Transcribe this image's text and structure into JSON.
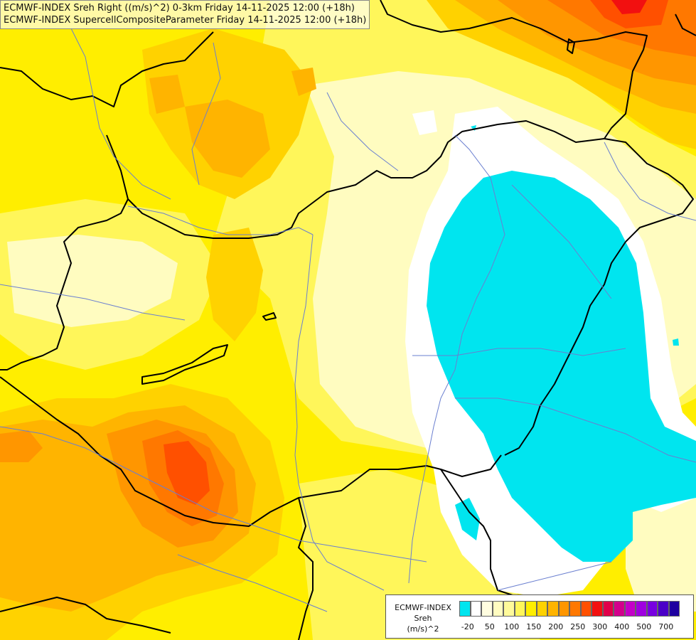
{
  "title": {
    "line1": "ECMWF-INDEX Sreh Right ((m/s)^2) 0-3km Friday 14-11-2025 12:00 (+18h)",
    "line2": "ECMWF-INDEX SupercellCompositeParameter Friday 14-11-2025 12:00 (+18h)"
  },
  "legend": {
    "line1": "ECMWF-INDEX",
    "line2": "Sreh",
    "line3": "(m/s)^2",
    "colors": [
      "#00e5ef",
      "#ffffff",
      "#fffde0",
      "#fffcc0",
      "#fffa9a",
      "#fff65a",
      "#ffee00",
      "#ffd200",
      "#ffb400",
      "#ff9600",
      "#ff7800",
      "#ff5000",
      "#f21010",
      "#e0004a",
      "#d2008c",
      "#c400c8",
      "#a000e0",
      "#7800e0",
      "#4b00c8",
      "#1e00a0"
    ],
    "ticks": [
      "-20",
      "50",
      "100",
      "150",
      "200",
      "250",
      "300",
      "400",
      "500",
      "700"
    ]
  },
  "map": {
    "field_colors": {
      "cyan": "#00e5ef",
      "white": "#ffffff",
      "pale": "#fffcc0",
      "light_yellow": "#fff65a",
      "yellow": "#ffee00",
      "gold": "#ffd200",
      "amber": "#ffb400",
      "orange": "#ff9600",
      "dark_orange": "#ff7800",
      "red_orange": "#ff5000",
      "red": "#f21010"
    },
    "border_color": "#000000",
    "river_color": "#6a7fd0"
  }
}
